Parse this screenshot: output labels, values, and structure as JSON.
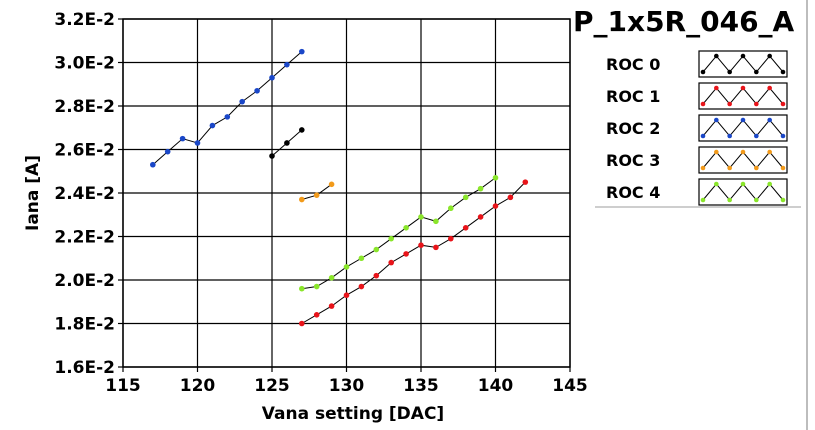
{
  "chart_data": {
    "type": "line",
    "title": "P_1x5R_046_A",
    "xlabel": "Vana setting [DAC]",
    "ylabel": "Iana [A]",
    "xlim": [
      115,
      145
    ],
    "ylim": [
      0.016,
      0.032
    ],
    "x_ticks": [
      115,
      120,
      125,
      130,
      135,
      140,
      145
    ],
    "y_ticks": [
      0.016,
      0.018,
      0.02,
      0.022,
      0.024,
      0.026,
      0.028,
      0.03,
      0.032
    ],
    "y_tick_labels": [
      "1.6E-2",
      "1.8E-2",
      "2.0E-2",
      "2.2E-2",
      "2.4E-2",
      "2.6E-2",
      "2.8E-2",
      "3.0E-2",
      "3.2E-2"
    ],
    "grid": true,
    "legend_position": "right",
    "series": [
      {
        "name": "ROC 0",
        "color": "#000000",
        "x": [
          125,
          126,
          127
        ],
        "y": [
          0.0257,
          0.0263,
          0.0269
        ]
      },
      {
        "name": "ROC 1",
        "color": "#e8141a",
        "x": [
          127,
          128,
          129,
          130,
          131,
          132,
          133,
          134,
          135,
          136,
          137,
          138,
          139,
          140,
          141,
          142
        ],
        "y": [
          0.018,
          0.0184,
          0.0188,
          0.0193,
          0.0197,
          0.0202,
          0.0208,
          0.0212,
          0.0216,
          0.0215,
          0.0219,
          0.0224,
          0.0229,
          0.0234,
          0.0238,
          0.0245
        ]
      },
      {
        "name": "ROC 2",
        "color": "#1a47c8",
        "x": [
          117,
          118,
          119,
          120,
          121,
          122,
          123,
          124,
          125,
          126,
          127
        ],
        "y": [
          0.0253,
          0.0259,
          0.0265,
          0.0263,
          0.0271,
          0.0275,
          0.0282,
          0.0287,
          0.0293,
          0.0299,
          0.0305
        ]
      },
      {
        "name": "ROC 3",
        "color": "#f29a1a",
        "x": [
          127,
          128,
          129
        ],
        "y": [
          0.0237,
          0.0239,
          0.0244
        ]
      },
      {
        "name": "ROC 4",
        "color": "#8ae62a",
        "x": [
          127,
          128,
          129,
          130,
          131,
          132,
          133,
          134,
          135,
          136,
          137,
          138,
          139,
          140
        ],
        "y": [
          0.0196,
          0.0197,
          0.0201,
          0.0206,
          0.021,
          0.0214,
          0.0219,
          0.0224,
          0.0229,
          0.0227,
          0.0233,
          0.0238,
          0.0242,
          0.0247
        ]
      }
    ]
  }
}
